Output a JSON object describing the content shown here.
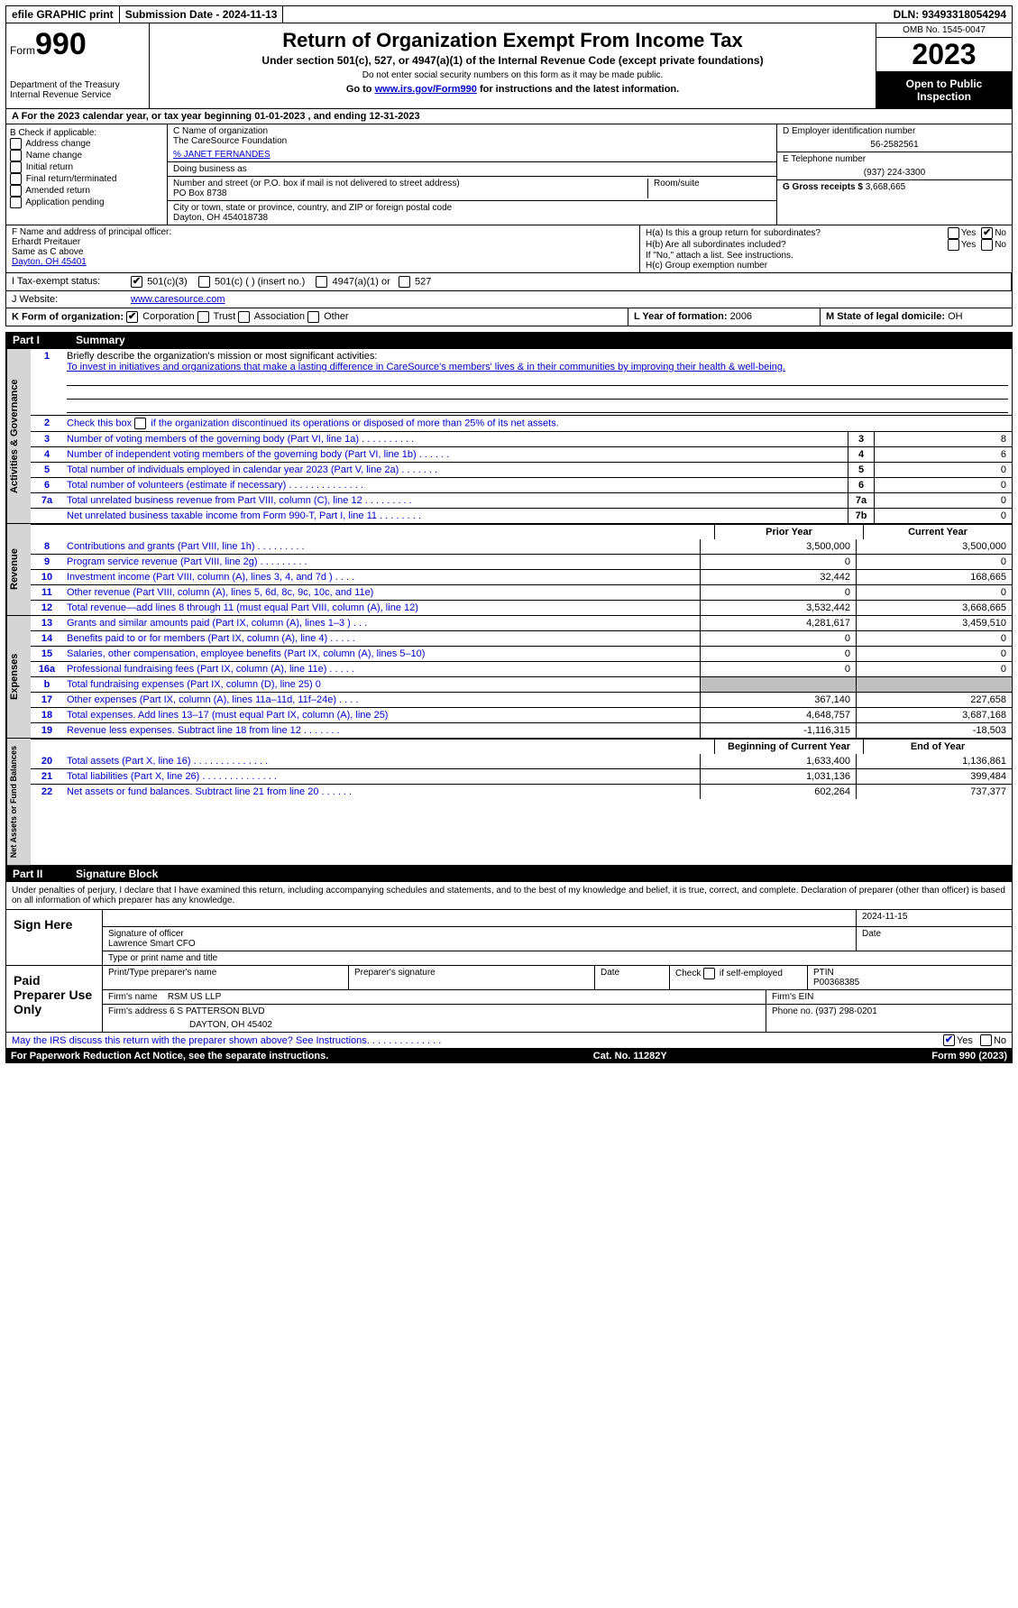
{
  "topbar": {
    "efile": "efile GRAPHIC print",
    "submission": "Submission Date - 2024-11-13",
    "dln": "DLN: 93493318054294"
  },
  "header": {
    "form_label": "Form",
    "form_number": "990",
    "dept": "Department of the Treasury",
    "irs": "Internal Revenue Service",
    "title": "Return of Organization Exempt From Income Tax",
    "subtitle": "Under section 501(c), 527, or 4947(a)(1) of the Internal Revenue Code (except private foundations)",
    "warn": "Do not enter social security numbers on this form as it may be made public.",
    "goto": "Go to ",
    "goto_link": "www.irs.gov/Form990",
    "goto_tail": " for instructions and the latest information.",
    "omb": "OMB No. 1545-0047",
    "year": "2023",
    "open_public": "Open to Public Inspection"
  },
  "row_a": "A  For the 2023 calendar year, or tax year beginning 01-01-2023    , and ending 12-31-2023",
  "box_b": {
    "title": "B Check if applicable:",
    "items": [
      "Address change",
      "Name change",
      "Initial return",
      "Final return/terminated",
      "Amended return",
      "Application pending"
    ]
  },
  "box_c": {
    "name_label": "C Name of organization",
    "name": "The CareSource Foundation",
    "pct": "% JANET FERNANDES",
    "dba_label": "Doing business as",
    "street_label": "Number and street (or P.O. box if mail is not delivered to street address)",
    "room_label": "Room/suite",
    "street": "PO Box 8738",
    "city_label": "City or town, state or province, country, and ZIP or foreign postal code",
    "city": "Dayton, OH  454018738"
  },
  "box_d": {
    "ein_label": "D Employer identification number",
    "ein": "56-2582561",
    "phone_label": "E Telephone number",
    "phone": "(937) 224-3300",
    "gross_label": "G Gross receipts $",
    "gross": "3,668,665"
  },
  "box_f": {
    "label": "F  Name and address of principal officer:",
    "name": "Erhardt Preitauer",
    "same": "Same as C above",
    "city": "Dayton, OH  45401"
  },
  "box_h": {
    "ha": "H(a)  Is this a group return for subordinates?",
    "hb": "H(b)  Are all subordinates included?",
    "hb_note": "If \"No,\" attach a list. See instructions.",
    "hc": "H(c)  Group exemption number",
    "yes": "Yes",
    "no": "No"
  },
  "row_i": {
    "label": "I   Tax-exempt status:",
    "o1": "501(c)(3)",
    "o2": "501(c) (  ) (insert no.)",
    "o3": "4947(a)(1) or",
    "o4": "527"
  },
  "row_j": {
    "label": "J   Website:",
    "value": "www.caresource.com"
  },
  "row_k": {
    "label": "K Form of organization:",
    "opts": [
      "Corporation",
      "Trust",
      "Association",
      "Other"
    ],
    "l_label": "L Year of formation:",
    "l_val": "2006",
    "m_label": "M State of legal domicile:",
    "m_val": "OH"
  },
  "part1": {
    "num": "Part I",
    "title": "Summary"
  },
  "summary": {
    "line1_label": "Briefly describe the organization's mission or most significant activities:",
    "line1_text": "To invest in initiatives and organizations that make a lasting difference in CareSource's members' lives & in their communities by improving their health & well-being.",
    "line2": "Check this box   if the organization discontinued its operations or disposed of more than 25% of its net assets.",
    "line3": "Number of voting members of the governing body (Part VI, line 1a)   .   .   .   .   .   .   .   .   .   .",
    "line4": "Number of independent voting members of the governing body (Part VI, line 1b)   .   .   .   .   .   .",
    "line5": "Total number of individuals employed in calendar year 2023 (Part V, line 2a)   .   .   .   .   .   .   .",
    "line6": "Total number of volunteers (estimate if necessary)    .   .   .   .   .   .   .   .   .   .   .   .   .   .",
    "line7a": "Total unrelated business revenue from Part VIII, column (C), line 12   .   .   .   .   .   .   .   .   .",
    "line7b": "Net unrelated business taxable income from Form 990-T, Part I, line 11   .   .   .   .   .   .   .   .",
    "values": {
      "3": "8",
      "4": "6",
      "5": "0",
      "6": "0",
      "7a": "0",
      "7b": "0"
    }
  },
  "cols": {
    "prior": "Prior Year",
    "current": "Current Year",
    "boy": "Beginning of Current Year",
    "eoy": "End of Year"
  },
  "revenue": [
    {
      "n": "8",
      "d": "Contributions and grants (Part VIII, line 1h)    .   .   .   .   .   .   .   .   .",
      "p": "3,500,000",
      "c": "3,500,000"
    },
    {
      "n": "9",
      "d": "Program service revenue (Part VIII, line 2g)   .   .   .   .   .   .   .   .   .",
      "p": "0",
      "c": "0"
    },
    {
      "n": "10",
      "d": "Investment income (Part VIII, column (A), lines 3, 4, and 7d )    .   .   .   .",
      "p": "32,442",
      "c": "168,665"
    },
    {
      "n": "11",
      "d": "Other revenue (Part VIII, column (A), lines 5, 6d, 8c, 9c, 10c, and 11e)",
      "p": "0",
      "c": "0"
    },
    {
      "n": "12",
      "d": "Total revenue—add lines 8 through 11 (must equal Part VIII, column (A), line 12)",
      "p": "3,532,442",
      "c": "3,668,665"
    }
  ],
  "expenses": [
    {
      "n": "13",
      "d": "Grants and similar amounts paid (Part IX, column (A), lines 1–3 )   .   .   .",
      "p": "4,281,617",
      "c": "3,459,510"
    },
    {
      "n": "14",
      "d": "Benefits paid to or for members (Part IX, column (A), line 4)   .   .   .   .   .",
      "p": "0",
      "c": "0"
    },
    {
      "n": "15",
      "d": "Salaries, other compensation, employee benefits (Part IX, column (A), lines 5–10)",
      "p": "0",
      "c": "0"
    },
    {
      "n": "16a",
      "d": "Professional fundraising fees (Part IX, column (A), line 11e)   .   .   .   .   .",
      "p": "0",
      "c": "0"
    },
    {
      "n": "b",
      "d": "Total fundraising expenses (Part IX, column (D), line 25) 0",
      "p": "",
      "c": "",
      "shaded": true
    },
    {
      "n": "17",
      "d": "Other expenses (Part IX, column (A), lines 11a–11d, 11f–24e)   .   .   .   .",
      "p": "367,140",
      "c": "227,658"
    },
    {
      "n": "18",
      "d": "Total expenses. Add lines 13–17 (must equal Part IX, column (A), line 25)",
      "p": "4,648,757",
      "c": "3,687,168"
    },
    {
      "n": "19",
      "d": "Revenue less expenses. Subtract line 18 from line 12   .   .   .   .   .   .   .",
      "p": "-1,116,315",
      "c": "-18,503"
    }
  ],
  "netassets": [
    {
      "n": "20",
      "d": "Total assets (Part X, line 16)   .   .   .   .   .   .   .   .   .   .   .   .   .   .",
      "p": "1,633,400",
      "c": "1,136,861"
    },
    {
      "n": "21",
      "d": "Total liabilities (Part X, line 26)   .   .   .   .   .   .   .   .   .   .   .   .   .   .",
      "p": "1,031,136",
      "c": "399,484"
    },
    {
      "n": "22",
      "d": "Net assets or fund balances. Subtract line 21 from line 20   .   .   .   .   .   .",
      "p": "602,264",
      "c": "737,377"
    }
  ],
  "sidelabels": {
    "ag": "Activities & Governance",
    "rev": "Revenue",
    "exp": "Expenses",
    "na": "Net Assets or Fund Balances"
  },
  "part2": {
    "num": "Part II",
    "title": "Signature Block"
  },
  "sig": {
    "perjury": "Under penalties of perjury, I declare that I have examined this return, including accompanying schedules and statements, and to the best of my knowledge and belief, it is true, correct, and complete. Declaration of preparer (other than officer) is based on all information of which preparer has any knowledge.",
    "sign_here": "Sign Here",
    "sig_officer": "Signature of officer",
    "officer": "Lawrence Smart CFO",
    "type_name": "Type or print name and title",
    "date": "Date",
    "sig_date": "2024-11-15",
    "paid": "Paid Preparer Use Only",
    "print_name": "Print/Type preparer's name",
    "prep_sig": "Preparer's signature",
    "check_self": "Check         if self-employed",
    "ptin_label": "PTIN",
    "ptin": "P00368385",
    "firm_name_label": "Firm's name",
    "firm_name": "RSM US LLP",
    "firm_ein_label": "Firm's EIN",
    "firm_addr_label": "Firm's address",
    "firm_addr": "6 S PATTERSON BLVD",
    "firm_city": "DAYTON, OH  45402",
    "phone_label": "Phone no.",
    "phone": "(937) 298-0201"
  },
  "footer": {
    "irs_discuss": "May the IRS discuss this return with the preparer shown above? See Instructions.   .   .   .   .   .   .   .   .   .   .   .   .   .",
    "yes": "Yes",
    "no": "No",
    "paperwork": "For Paperwork Reduction Act Notice, see the separate instructions.",
    "cat": "Cat. No. 11282Y",
    "form": "Form 990 (2023)"
  }
}
